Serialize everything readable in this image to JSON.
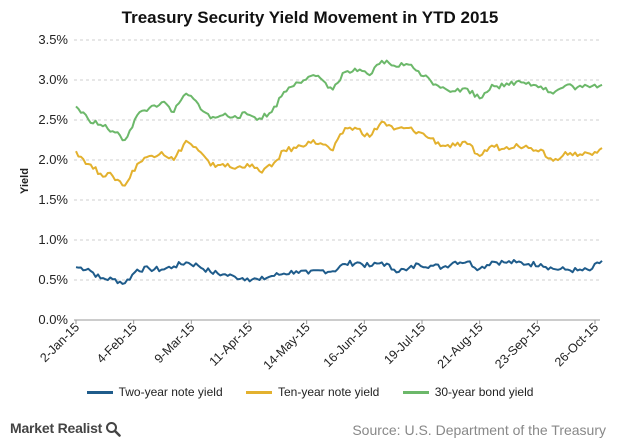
{
  "chart_data": {
    "type": "line",
    "title": "Treasury Security Yield Movement in YTD 2015",
    "ylabel": "Yield",
    "xlabel": "",
    "ylim": [
      0,
      3.5
    ],
    "ytick_labels": [
      "0.0%",
      "0.5%",
      "1.0%",
      "1.5%",
      "2.0%",
      "2.5%",
      "3.0%",
      "3.5%"
    ],
    "xtick_labels": [
      "2-Jan-15",
      "4-Feb-15",
      "9-Mar-15",
      "11-Apr-15",
      "14-May-15",
      "16-Jun-15",
      "19-Jul-15",
      "21-Aug-15",
      "23-Sep-15",
      "26-Oct-15"
    ],
    "grid": "horizontal dashed",
    "legend_position": "bottom",
    "x": [
      "2015-01-02",
      "2015-01-09",
      "2015-01-16",
      "2015-01-23",
      "2015-01-30",
      "2015-02-06",
      "2015-02-13",
      "2015-02-20",
      "2015-02-27",
      "2015-03-06",
      "2015-03-13",
      "2015-03-20",
      "2015-03-27",
      "2015-04-03",
      "2015-04-10",
      "2015-04-17",
      "2015-04-24",
      "2015-05-01",
      "2015-05-08",
      "2015-05-15",
      "2015-05-22",
      "2015-05-29",
      "2015-06-05",
      "2015-06-12",
      "2015-06-19",
      "2015-06-26",
      "2015-07-03",
      "2015-07-10",
      "2015-07-17",
      "2015-07-24",
      "2015-07-31",
      "2015-08-07",
      "2015-08-14",
      "2015-08-21",
      "2015-08-28",
      "2015-09-04",
      "2015-09-11",
      "2015-09-18",
      "2015-09-25",
      "2015-10-02",
      "2015-10-09",
      "2015-10-16",
      "2015-10-23",
      "2015-10-30"
    ],
    "series": [
      {
        "name": "Two-year note yield",
        "color": "#1f5c8b",
        "values": [
          0.66,
          0.64,
          0.52,
          0.51,
          0.46,
          0.63,
          0.64,
          0.63,
          0.67,
          0.72,
          0.68,
          0.6,
          0.57,
          0.54,
          0.52,
          0.5,
          0.55,
          0.58,
          0.61,
          0.58,
          0.62,
          0.61,
          0.7,
          0.72,
          0.67,
          0.72,
          0.63,
          0.62,
          0.7,
          0.68,
          0.66,
          0.73,
          0.73,
          0.64,
          0.73,
          0.72,
          0.72,
          0.7,
          0.7,
          0.64,
          0.63,
          0.62,
          0.62,
          0.74
        ]
      },
      {
        "name": "Ten-year note yield",
        "color": "#e3b12e",
        "values": [
          2.11,
          1.95,
          1.83,
          1.8,
          1.68,
          1.95,
          2.05,
          2.1,
          2.0,
          2.24,
          2.12,
          1.93,
          1.95,
          1.89,
          1.95,
          1.86,
          1.92,
          2.12,
          2.15,
          2.23,
          2.21,
          2.12,
          2.4,
          2.39,
          2.29,
          2.48,
          2.38,
          2.4,
          2.35,
          2.27,
          2.18,
          2.18,
          2.2,
          2.05,
          2.18,
          2.14,
          2.2,
          2.15,
          2.13,
          1.99,
          2.1,
          2.05,
          2.08,
          2.15
        ]
      },
      {
        "name": "30-year bond yield",
        "color": "#6cb86a",
        "values": [
          2.67,
          2.51,
          2.44,
          2.36,
          2.25,
          2.56,
          2.65,
          2.72,
          2.6,
          2.83,
          2.7,
          2.52,
          2.56,
          2.55,
          2.57,
          2.52,
          2.6,
          2.85,
          2.97,
          3.04,
          3.02,
          2.88,
          3.1,
          3.11,
          3.06,
          3.24,
          3.18,
          3.2,
          3.11,
          2.99,
          2.91,
          2.86,
          2.89,
          2.77,
          2.94,
          2.92,
          2.98,
          2.97,
          2.92,
          2.83,
          2.93,
          2.91,
          2.91,
          2.94
        ]
      }
    ]
  },
  "footer": {
    "brand": "Market Realist",
    "source": "Source: U.S. Department of the Treasury"
  }
}
